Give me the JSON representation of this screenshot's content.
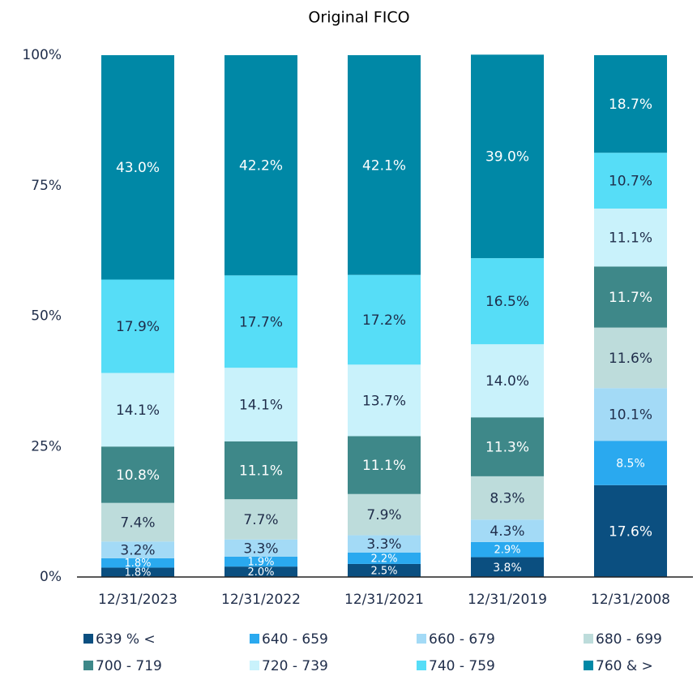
{
  "chart_data": {
    "type": "stacked_bar",
    "title": "Original FICO",
    "categories": [
      "12/31/2023",
      "12/31/2022",
      "12/31/2021",
      "12/31/2019",
      "12/31/2008"
    ],
    "ylim": [
      0,
      100
    ],
    "yticks": [
      {
        "value": 0,
        "label": "0%"
      },
      {
        "value": 25,
        "label": "25%"
      },
      {
        "value": 50,
        "label": "50%"
      },
      {
        "value": 75,
        "label": "75%"
      },
      {
        "value": 100,
        "label": "100%"
      }
    ],
    "series": [
      {
        "name": "639 % <",
        "color": "#0b4f80",
        "values": [
          1.8,
          2.0,
          2.5,
          3.8,
          17.6
        ],
        "value_labels": [
          "1.8%",
          "2.0%",
          "2.5%",
          "3.8%",
          "17.6%"
        ]
      },
      {
        "name": "640 - 659",
        "color": "#2aa9ef",
        "values": [
          1.8,
          1.9,
          2.2,
          2.9,
          8.5
        ],
        "value_labels": [
          "1.8%",
          "1.9%",
          "2.2%",
          "2.9%",
          "8.5%"
        ]
      },
      {
        "name": "660 - 679",
        "color": "#a3daf6",
        "values": [
          3.2,
          3.3,
          3.3,
          4.3,
          10.1
        ],
        "value_labels": [
          "3.2%",
          "3.3%",
          "3.3%",
          "4.3%",
          "10.1%"
        ]
      },
      {
        "name": "680 - 699",
        "color": "#bddcdb",
        "values": [
          7.4,
          7.7,
          7.9,
          8.3,
          11.6
        ],
        "value_labels": [
          "7.4%",
          "7.7%",
          "7.9%",
          "8.3%",
          "11.6%"
        ]
      },
      {
        "name": "700 - 719",
        "color": "#3e8889",
        "values": [
          10.8,
          11.1,
          11.1,
          11.3,
          11.7
        ],
        "value_labels": [
          "10.8%",
          "11.1%",
          "11.1%",
          "11.3%",
          "11.7%"
        ]
      },
      {
        "name": "720 - 739",
        "color": "#c9f2fb",
        "values": [
          14.1,
          14.1,
          13.7,
          14.0,
          11.1
        ],
        "value_labels": [
          "14.1%",
          "14.1%",
          "13.7%",
          "14.0%",
          "11.1%"
        ]
      },
      {
        "name": "740 - 759",
        "color": "#56ddf7",
        "values": [
          17.9,
          17.7,
          17.2,
          16.5,
          10.7
        ],
        "value_labels": [
          "17.9%",
          "17.7%",
          "17.2%",
          "16.5%",
          "10.7%"
        ]
      },
      {
        "name": "760 & >",
        "color": "#0088a6",
        "values": [
          43.0,
          42.2,
          42.1,
          39.0,
          18.7
        ],
        "value_labels": [
          "43.0%",
          "42.2%",
          "42.1%",
          "39.0%",
          "18.7%"
        ]
      }
    ]
  }
}
